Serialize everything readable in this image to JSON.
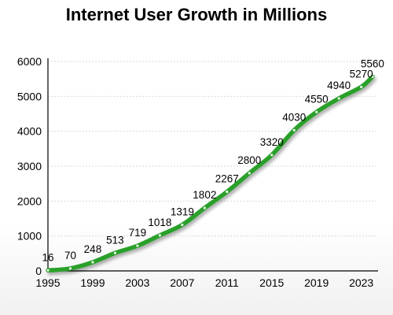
{
  "chart_data": {
    "type": "line",
    "title": "Internet User Growth in Millions",
    "xlabel": "",
    "ylabel": "",
    "x": [
      1995,
      1997,
      1999,
      2001,
      2003,
      2005,
      2007,
      2009,
      2011,
      2013,
      2015,
      2017,
      2019,
      2021,
      2023,
      2024
    ],
    "series": [
      {
        "values": [
          16,
          70,
          248,
          513,
          719,
          1018,
          1319,
          1802,
          2267,
          2800,
          3320,
          4030,
          4550,
          4940,
          5270,
          5560
        ],
        "color": "#2ca02c"
      }
    ],
    "x_ticks": [
      1995,
      1999,
      2003,
      2007,
      2011,
      2015,
      2019,
      2023
    ],
    "y_ticks": [
      0,
      1000,
      2000,
      3000,
      4000,
      5000,
      6000
    ],
    "xlim": [
      1995,
      2024.5
    ],
    "ylim": [
      0,
      6000
    ],
    "grid": "horizontal-dashed",
    "legend": "none"
  }
}
